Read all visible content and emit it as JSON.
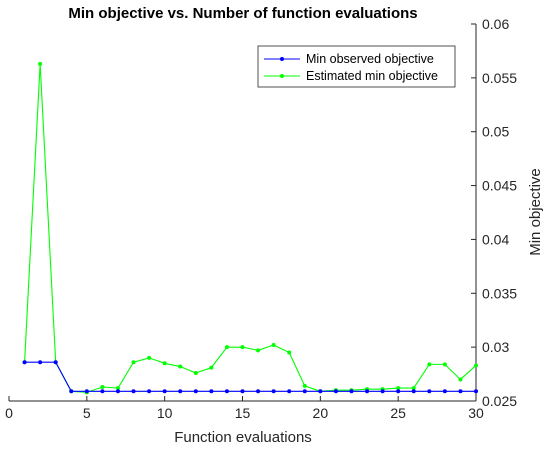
{
  "chart_data": {
    "type": "line",
    "title": "Min objective vs. Number of function evaluations",
    "xlabel": "Function evaluations",
    "ylabel": "Min objective",
    "xlim": [
      0,
      30
    ],
    "ylim": [
      0.025,
      0.06
    ],
    "xticks": [
      0,
      5,
      10,
      15,
      20,
      25,
      30
    ],
    "xtick_labels": [
      "0",
      "5",
      "10",
      "15",
      "20",
      "25",
      "30"
    ],
    "yticks": [
      0.025,
      0.03,
      0.035,
      0.04,
      0.045,
      0.05,
      0.055,
      0.06
    ],
    "ytick_labels": [
      "0.025",
      "0.03",
      "0.035",
      "0.04",
      "0.045",
      "0.05",
      "0.055",
      "0.06"
    ],
    "y_axis_location": "right",
    "grid": false,
    "legend_position": "top-right",
    "x": [
      1,
      2,
      3,
      4,
      5,
      6,
      7,
      8,
      9,
      10,
      11,
      12,
      13,
      14,
      15,
      16,
      17,
      18,
      19,
      20,
      21,
      22,
      23,
      24,
      25,
      26,
      27,
      28,
      29,
      30
    ],
    "series": [
      {
        "name": "Min observed objective",
        "color": "#0000ff",
        "values": [
          0.0286,
          0.0286,
          0.0286,
          0.0259,
          0.0259,
          0.0259,
          0.0259,
          0.0259,
          0.0259,
          0.0259,
          0.0259,
          0.0259,
          0.0259,
          0.0259,
          0.0259,
          0.0259,
          0.0259,
          0.0259,
          0.0259,
          0.0259,
          0.0259,
          0.0259,
          0.0259,
          0.0259,
          0.0259,
          0.0259,
          0.0259,
          0.0259,
          0.0259,
          0.0259
        ]
      },
      {
        "name": "Estimated min objective",
        "color": "#00ff00",
        "values": [
          0.0286,
          0.0563,
          0.0286,
          0.0259,
          0.0258,
          0.0263,
          0.0262,
          0.0286,
          0.029,
          0.0285,
          0.0282,
          0.0276,
          0.0281,
          0.03,
          0.03,
          0.0297,
          0.0302,
          0.0295,
          0.0264,
          0.0259,
          0.026,
          0.026,
          0.0261,
          0.0261,
          0.0262,
          0.0262,
          0.0284,
          0.0284,
          0.027,
          0.0283
        ]
      }
    ]
  }
}
